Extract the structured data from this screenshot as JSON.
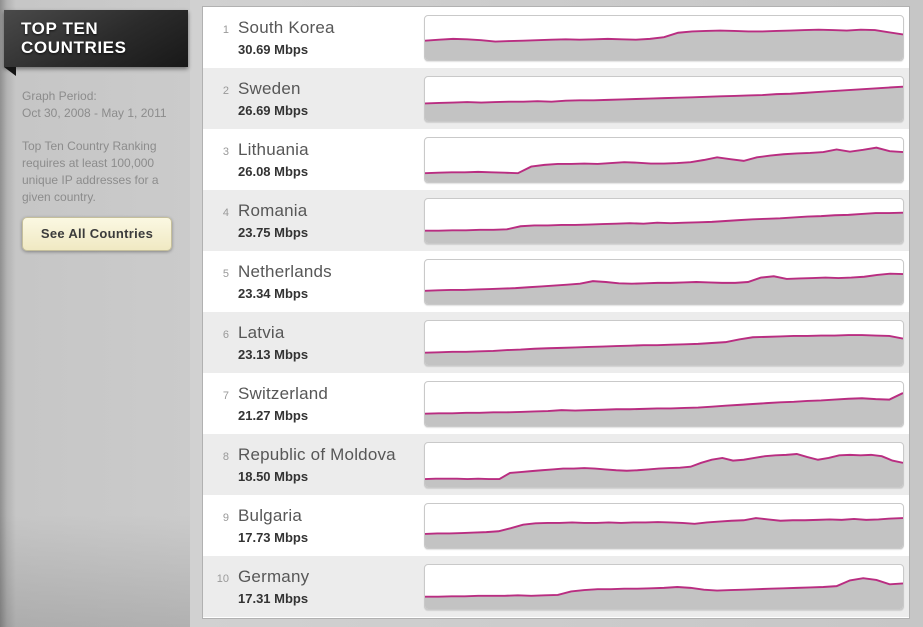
{
  "sidebar": {
    "title_line1": "TOP TEN",
    "title_line2": "COUNTRIES",
    "graph_period_label": "Graph Period:",
    "graph_period_value": "Oct 30, 2008 - May 1, 2011",
    "note": "Top Ten Country Ranking requires at least 100,000 unique IP addresses for a given country.",
    "button_label": "See All Countries"
  },
  "colors": {
    "chart_line": "#b92d81",
    "chart_fill": "#c3c3c3",
    "row_alt_background": "#ececec",
    "button_background": "#f5efcf"
  },
  "chart_data": {
    "type": "area",
    "title": "Top Ten Countries",
    "unit": "Mbps",
    "x_start": "Oct 30, 2008",
    "x_end": "May 1, 2011",
    "legend": "off",
    "grid": "off",
    "series": [
      {
        "rank": "1",
        "country": "South Korea",
        "speed_label": "30.69 Mbps",
        "speed_mbps": 30.69,
        "trend": [
          44,
          46,
          48,
          47,
          45,
          42,
          43,
          44,
          45,
          46,
          47,
          46,
          47,
          48,
          47,
          46,
          48,
          52,
          62,
          65,
          66,
          67,
          66,
          65,
          65,
          66,
          67,
          68,
          69,
          68,
          67,
          69,
          68,
          63,
          58
        ]
      },
      {
        "rank": "2",
        "country": "Sweden",
        "speed_label": "26.69 Mbps",
        "speed_mbps": 26.69,
        "trend": [
          40,
          41,
          42,
          43,
          42,
          43,
          44,
          44,
          45,
          44,
          46,
          47,
          47,
          48,
          49,
          50,
          51,
          52,
          53,
          54,
          55,
          56,
          57,
          58,
          59,
          61,
          62,
          64,
          66,
          68,
          70,
          72,
          74,
          76,
          78
        ]
      },
      {
        "rank": "3",
        "country": "Lithuania",
        "speed_label": "26.08 Mbps",
        "speed_mbps": 26.08,
        "trend": [
          20,
          21,
          22,
          22,
          23,
          22,
          21,
          20,
          35,
          39,
          41,
          41,
          42,
          41,
          43,
          45,
          44,
          42,
          42,
          43,
          45,
          50,
          56,
          52,
          48,
          56,
          60,
          63,
          65,
          66,
          68,
          74,
          69,
          73,
          78,
          70,
          68
        ]
      },
      {
        "rank": "4",
        "country": "Romania",
        "speed_label": "23.75 Mbps",
        "speed_mbps": 23.75,
        "trend": [
          28,
          28,
          29,
          29,
          30,
          30,
          31,
          38,
          40,
          40,
          41,
          41,
          42,
          43,
          44,
          45,
          44,
          46,
          45,
          46,
          47,
          48,
          50,
          52,
          54,
          55,
          56,
          58,
          60,
          61,
          63,
          64,
          66,
          68,
          68,
          69
        ]
      },
      {
        "rank": "5",
        "country": "Netherlands",
        "speed_label": "23.34 Mbps",
        "speed_mbps": 23.34,
        "trend": [
          30,
          31,
          32,
          32,
          33,
          34,
          35,
          36,
          38,
          40,
          42,
          44,
          46,
          52,
          50,
          47,
          46,
          47,
          48,
          48,
          49,
          50,
          49,
          48,
          48,
          50,
          60,
          63,
          57,
          58,
          59,
          60,
          59,
          60,
          62,
          66,
          69,
          68
        ]
      },
      {
        "rank": "6",
        "country": "Latvia",
        "speed_label": "23.13 Mbps",
        "speed_mbps": 23.13,
        "trend": [
          28,
          29,
          30,
          30,
          31,
          32,
          34,
          35,
          37,
          38,
          39,
          40,
          41,
          42,
          43,
          44,
          45,
          45,
          46,
          47,
          48,
          50,
          52,
          58,
          63,
          64,
          65,
          66,
          66,
          67,
          67,
          68,
          68,
          67,
          66,
          60
        ]
      },
      {
        "rank": "7",
        "country": "Switzerland",
        "speed_label": "21.27 Mbps",
        "speed_mbps": 21.27,
        "trend": [
          28,
          29,
          29,
          30,
          30,
          31,
          31,
          32,
          33,
          34,
          36,
          35,
          36,
          37,
          38,
          38,
          39,
          40,
          40,
          41,
          42,
          44,
          46,
          48,
          50,
          52,
          54,
          55,
          57,
          58,
          60,
          62,
          63,
          61,
          60,
          75
        ]
      },
      {
        "rank": "8",
        "country": "Republic of Moldova",
        "speed_label": "18.50 Mbps",
        "speed_mbps": 18.5,
        "trend": [
          18,
          19,
          19,
          19,
          18,
          19,
          18,
          18,
          32,
          34,
          36,
          38,
          40,
          42,
          42,
          43,
          42,
          40,
          38,
          37,
          38,
          40,
          42,
          43,
          44,
          46,
          55,
          62,
          66,
          60,
          62,
          66,
          70,
          72,
          73,
          75,
          68,
          62,
          66,
          72,
          73,
          72,
          73,
          70,
          60,
          55
        ]
      },
      {
        "rank": "9",
        "country": "Bulgaria",
        "speed_label": "17.73 Mbps",
        "speed_mbps": 17.73,
        "trend": [
          32,
          33,
          33,
          34,
          35,
          36,
          38,
          45,
          53,
          56,
          57,
          57,
          58,
          57,
          57,
          58,
          57,
          58,
          58,
          59,
          58,
          57,
          55,
          58,
          60,
          62,
          63,
          68,
          65,
          62,
          63,
          63,
          64,
          65,
          64,
          66,
          64,
          65,
          67,
          68
        ]
      },
      {
        "rank": "10",
        "country": "Germany",
        "speed_label": "17.31 Mbps",
        "speed_mbps": 17.31,
        "trend": [
          28,
          28,
          29,
          29,
          30,
          30,
          30,
          31,
          30,
          31,
          32,
          40,
          43,
          45,
          45,
          46,
          46,
          47,
          48,
          50,
          48,
          44,
          42,
          43,
          44,
          45,
          46,
          47,
          48,
          49,
          50,
          52,
          65,
          70,
          66,
          56,
          58
        ]
      }
    ]
  }
}
